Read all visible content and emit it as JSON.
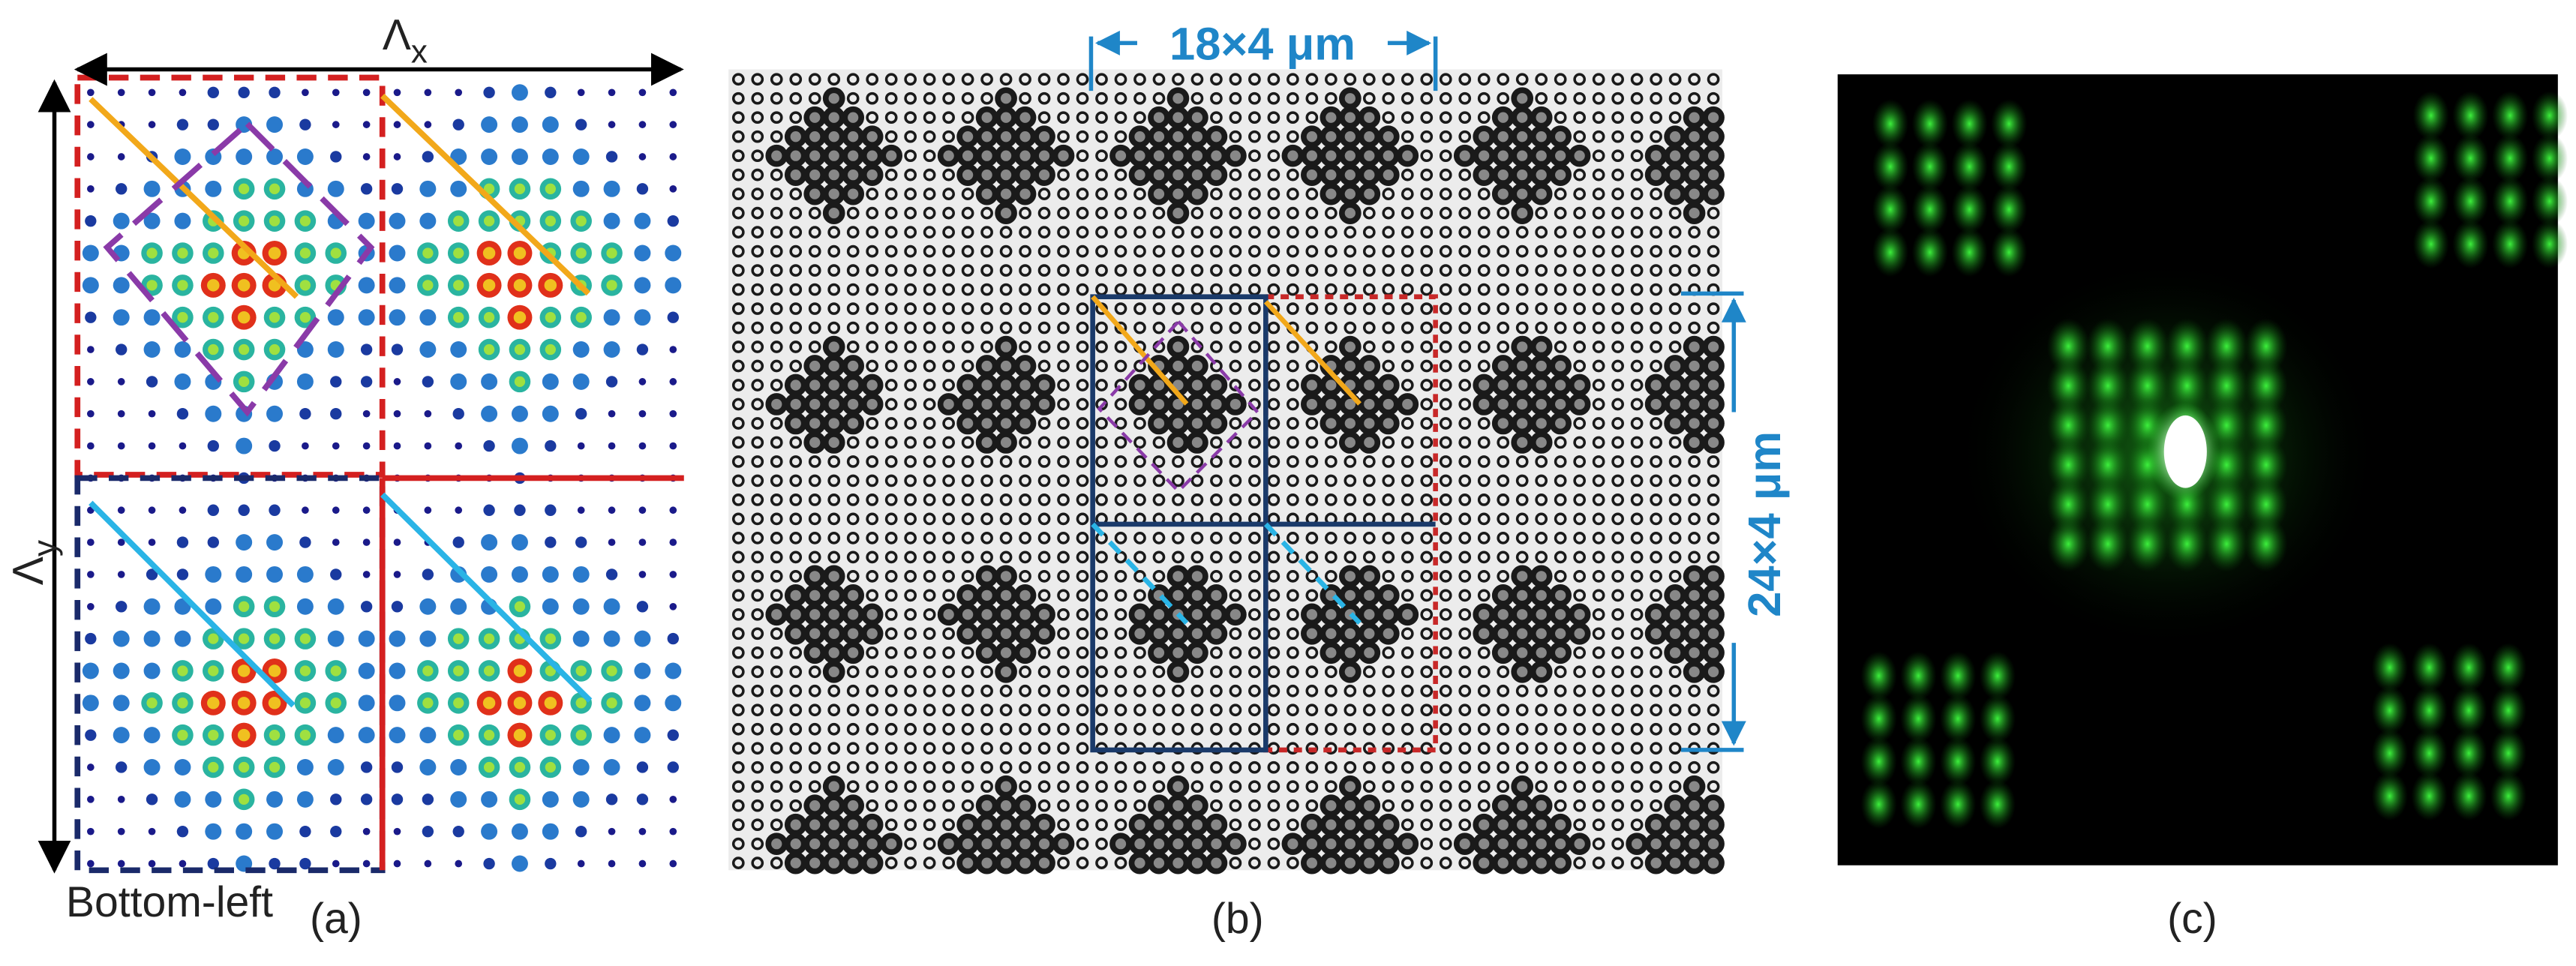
{
  "panels": [
    {
      "label": "(a)",
      "x_period": {
        "symbol": "Λ",
        "subscript": "x"
      },
      "y_period": {
        "symbol": "Λ",
        "subscript": "y"
      },
      "corner_note": "Bottom-left"
    },
    {
      "label": "(b)",
      "width_note": "18×4 μm",
      "height_note": "24×4 μm"
    },
    {
      "label": "(c)"
    }
  ]
}
